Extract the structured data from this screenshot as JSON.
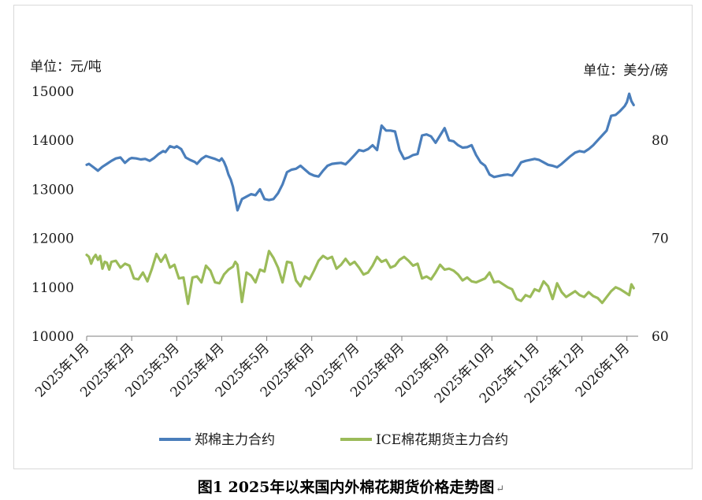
{
  "caption": "图1 2025年以来国内外棉花期货价格走势图",
  "chart_data": {
    "type": "line",
    "left_unit": "单位：元/吨",
    "right_unit": "单位：美分/磅",
    "y_left": {
      "min": 10000,
      "max": 15000,
      "ticks": [
        10000,
        11000,
        12000,
        13000,
        14000,
        15000
      ]
    },
    "y_right": {
      "min": 60,
      "max": 85,
      "ticks": [
        60,
        70,
        80
      ]
    },
    "x_ticks": [
      "2025年1月",
      "2025年2月",
      "2025年3月",
      "2025年4月",
      "2025年5月",
      "2025年6月",
      "2025年7月",
      "2025年8月",
      "2025年9月",
      "2025年10月",
      "2025年11月",
      "2025年12月",
      "2026年1月"
    ],
    "x_range": [
      0,
      12.25
    ],
    "legend_position": "bottom",
    "grid": false,
    "series": [
      {
        "name": "郑棉主力合约",
        "axis": "left",
        "color": "#4a7ebb",
        "x": [
          0,
          0.05,
          0.15,
          0.25,
          0.35,
          0.45,
          0.55,
          0.65,
          0.75,
          0.85,
          0.95,
          1.0,
          1.1,
          1.2,
          1.3,
          1.4,
          1.5,
          1.6,
          1.7,
          1.75,
          1.85,
          1.95,
          2.0,
          2.1,
          2.2,
          2.3,
          2.4,
          2.45,
          2.55,
          2.65,
          2.75,
          2.85,
          2.95,
          3.0,
          3.05,
          3.1,
          3.15,
          3.2,
          3.25,
          3.35,
          3.45,
          3.55,
          3.65,
          3.75,
          3.85,
          3.95,
          4.05,
          4.15,
          4.25,
          4.35,
          4.45,
          4.55,
          4.65,
          4.75,
          4.85,
          4.95,
          5.05,
          5.15,
          5.25,
          5.35,
          5.45,
          5.55,
          5.65,
          5.75,
          5.85,
          5.95,
          6.05,
          6.15,
          6.25,
          6.35,
          6.45,
          6.55,
          6.65,
          6.75,
          6.85,
          6.95,
          7.05,
          7.15,
          7.25,
          7.35,
          7.45,
          7.55,
          7.65,
          7.75,
          7.85,
          7.95,
          8.05,
          8.15,
          8.25,
          8.35,
          8.45,
          8.55,
          8.65,
          8.75,
          8.85,
          8.95,
          9.05,
          9.15,
          9.25,
          9.35,
          9.45,
          9.55,
          9.65,
          9.75,
          9.85,
          9.95,
          10.05,
          10.15,
          10.25,
          10.35,
          10.45,
          10.55,
          10.65,
          10.75,
          10.85,
          10.95,
          11.05,
          11.15,
          11.25,
          11.35,
          11.45,
          11.55,
          11.65,
          11.75,
          11.85,
          11.95,
          12.0,
          12.05,
          12.1,
          12.15
        ],
        "values": [
          13500,
          13520,
          13450,
          13380,
          13460,
          13520,
          13580,
          13630,
          13650,
          13540,
          13620,
          13640,
          13630,
          13610,
          13620,
          13580,
          13640,
          13720,
          13780,
          13760,
          13880,
          13850,
          13880,
          13820,
          13650,
          13600,
          13560,
          13520,
          13620,
          13680,
          13650,
          13620,
          13580,
          13630,
          13560,
          13450,
          13300,
          13200,
          13050,
          12570,
          12800,
          12850,
          12900,
          12880,
          13000,
          12800,
          12780,
          12800,
          12920,
          13100,
          13350,
          13400,
          13420,
          13480,
          13400,
          13320,
          13280,
          13260,
          13380,
          13480,
          13520,
          13530,
          13540,
          13510,
          13600,
          13700,
          13800,
          13780,
          13820,
          13900,
          13800,
          14300,
          14200,
          14200,
          14180,
          13800,
          13620,
          13650,
          13700,
          13720,
          14100,
          14120,
          14080,
          13950,
          14100,
          14250,
          14000,
          13980,
          13900,
          13850,
          13860,
          13900,
          13700,
          13550,
          13480,
          13300,
          13250,
          13270,
          13290,
          13300,
          13280,
          13400,
          13550,
          13580,
          13600,
          13620,
          13600,
          13550,
          13500,
          13480,
          13450,
          13520,
          13600,
          13680,
          13750,
          13780,
          13760,
          13820,
          13900,
          14000,
          14100,
          14200,
          14500,
          14520,
          14600,
          14700,
          14780,
          14950,
          14800,
          14720
        ]
      },
      {
        "name": "ICE棉花期货主力合约",
        "axis": "right",
        "color": "#9bbb59",
        "x": [
          0,
          0.05,
          0.1,
          0.15,
          0.2,
          0.25,
          0.3,
          0.35,
          0.4,
          0.45,
          0.5,
          0.55,
          0.65,
          0.75,
          0.85,
          0.95,
          1.05,
          1.15,
          1.25,
          1.35,
          1.45,
          1.55,
          1.65,
          1.75,
          1.85,
          1.95,
          2.05,
          2.15,
          2.25,
          2.35,
          2.45,
          2.55,
          2.65,
          2.75,
          2.85,
          2.95,
          3.05,
          3.15,
          3.25,
          3.3,
          3.35,
          3.45,
          3.55,
          3.65,
          3.75,
          3.85,
          3.95,
          4.05,
          4.15,
          4.25,
          4.35,
          4.45,
          4.55,
          4.65,
          4.75,
          4.85,
          4.95,
          5.05,
          5.15,
          5.25,
          5.35,
          5.45,
          5.55,
          5.65,
          5.75,
          5.85,
          5.95,
          6.05,
          6.15,
          6.25,
          6.35,
          6.45,
          6.55,
          6.65,
          6.75,
          6.85,
          6.95,
          7.05,
          7.15,
          7.25,
          7.35,
          7.45,
          7.55,
          7.65,
          7.75,
          7.85,
          7.95,
          8.05,
          8.15,
          8.25,
          8.35,
          8.45,
          8.55,
          8.65,
          8.75,
          8.85,
          8.95,
          9.05,
          9.15,
          9.25,
          9.35,
          9.45,
          9.55,
          9.65,
          9.75,
          9.85,
          9.95,
          10.05,
          10.15,
          10.25,
          10.35,
          10.45,
          10.55,
          10.65,
          10.75,
          10.85,
          10.95,
          11.05,
          11.15,
          11.25,
          11.35,
          11.45,
          11.55,
          11.65,
          11.75,
          11.85,
          11.95,
          12.05,
          12.1,
          12.15
        ],
        "values": [
          68.3,
          68.1,
          67.4,
          68.0,
          68.3,
          67.8,
          68.2,
          66.9,
          67.6,
          67.5,
          66.8,
          67.6,
          67.7,
          67.0,
          67.4,
          67.2,
          65.9,
          65.8,
          66.5,
          65.6,
          66.9,
          68.4,
          67.6,
          68.3,
          67.0,
          67.3,
          65.9,
          66.0,
          63.3,
          66.0,
          66.1,
          65.5,
          67.2,
          66.7,
          65.5,
          65.4,
          66.3,
          66.8,
          67.1,
          67.6,
          67.3,
          63.5,
          66.5,
          66.2,
          65.5,
          66.8,
          66.6,
          68.7,
          68.0,
          67.0,
          65.5,
          67.6,
          67.5,
          65.7,
          65.1,
          66.1,
          65.8,
          66.7,
          67.7,
          68.2,
          67.9,
          68.1,
          66.9,
          67.3,
          67.9,
          67.3,
          67.6,
          67.0,
          66.3,
          66.5,
          67.2,
          68.1,
          67.6,
          67.8,
          67.0,
          67.2,
          67.8,
          68.1,
          67.7,
          67.2,
          67.4,
          65.9,
          66.1,
          65.8,
          66.5,
          67.3,
          66.8,
          66.9,
          66.7,
          66.3,
          65.7,
          66.0,
          65.6,
          65.5,
          65.7,
          65.9,
          66.5,
          65.5,
          65.6,
          65.3,
          65.0,
          64.8,
          63.8,
          63.6,
          64.2,
          64.0,
          64.8,
          64.6,
          65.6,
          65.1,
          63.8,
          65.4,
          64.5,
          64.0,
          64.3,
          64.6,
          64.2,
          64.0,
          64.5,
          64.1,
          63.9,
          63.4,
          64.0,
          64.6,
          65.0,
          64.8,
          64.5,
          64.2,
          65.3,
          64.9
        ]
      }
    ]
  }
}
